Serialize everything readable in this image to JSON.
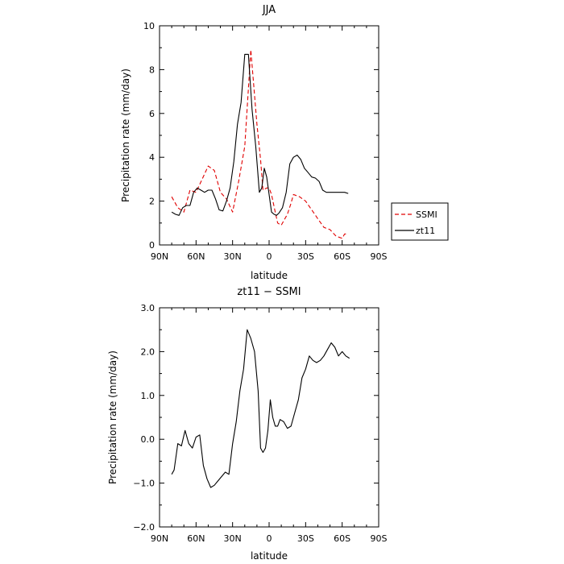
{
  "chart_data": [
    {
      "type": "line",
      "title": "JJA",
      "xlabel": "latitude",
      "ylabel": "Precipitation rate (mm/day)",
      "xlim": [
        90,
        -90
      ],
      "ylim": [
        0,
        10
      ],
      "x_ticks": [
        90,
        60,
        30,
        0,
        -30,
        -60,
        -90
      ],
      "x_tick_labels": [
        "90N",
        "60N",
        "30N",
        "0",
        "30S",
        "60S",
        "90S"
      ],
      "y_ticks": [
        0,
        2,
        4,
        6,
        8,
        10
      ],
      "y_tick_labels": [
        "0",
        "2",
        "4",
        "6",
        "8",
        "10"
      ],
      "grid": false,
      "legend_position": "right",
      "series": [
        {
          "name": "SSMI",
          "color": "#e00000",
          "dash": "dashed",
          "x": [
            80,
            75,
            70,
            65,
            60,
            55,
            50,
            45,
            40,
            35,
            30,
            25,
            20,
            15,
            10,
            7,
            5,
            2,
            0,
            -2,
            -5,
            -7,
            -10,
            -15,
            -18,
            -20,
            -25,
            -30,
            -35,
            -40,
            -45,
            -50,
            -55,
            -60,
            -62,
            -65
          ],
          "y": [
            2.2,
            1.7,
            1.5,
            2.5,
            2.4,
            3.0,
            3.6,
            3.4,
            2.4,
            2.1,
            1.5,
            2.9,
            4.5,
            8.9,
            5.5,
            3.9,
            2.5,
            2.6,
            2.6,
            2.3,
            1.5,
            1.0,
            0.9,
            1.4,
            1.9,
            2.3,
            2.2,
            2.0,
            1.6,
            1.2,
            0.8,
            0.7,
            0.4,
            0.3,
            0.5,
            0.5
          ]
        },
        {
          "name": "zt11",
          "color": "#000000",
          "dash": "solid",
          "x": [
            80,
            77,
            74,
            71,
            68,
            65,
            62,
            59,
            56,
            53,
            50,
            47,
            44,
            41,
            38,
            35,
            32,
            29,
            26,
            23,
            20,
            17,
            14,
            11,
            8,
            6,
            4,
            2,
            0,
            -2,
            -4,
            -6,
            -8,
            -11,
            -14,
            -17,
            -20,
            -23,
            -26,
            -29,
            -32,
            -35,
            -38,
            -41,
            -44,
            -47,
            -50,
            -53,
            -56,
            -59,
            -62,
            -65
          ],
          "y": [
            1.5,
            1.4,
            1.35,
            1.7,
            1.8,
            1.8,
            2.4,
            2.6,
            2.5,
            2.4,
            2.5,
            2.5,
            2.1,
            1.6,
            1.55,
            2.0,
            2.6,
            3.8,
            5.5,
            6.5,
            8.7,
            8.7,
            6.2,
            4.5,
            2.4,
            2.6,
            3.5,
            3.1,
            2.3,
            1.5,
            1.4,
            1.35,
            1.45,
            1.7,
            2.4,
            3.7,
            4.0,
            4.1,
            3.9,
            3.5,
            3.3,
            3.1,
            3.05,
            2.9,
            2.5,
            2.4,
            2.4,
            2.4,
            2.4,
            2.4,
            2.4,
            2.35
          ]
        }
      ]
    },
    {
      "type": "line",
      "title": "zt11 − SSMI",
      "xlabel": "latitude",
      "ylabel": "Precipitation rate (mm/day)",
      "xlim": [
        90,
        -90
      ],
      "ylim": [
        -2,
        3
      ],
      "x_ticks": [
        90,
        60,
        30,
        0,
        -30,
        -60,
        -90
      ],
      "x_tick_labels": [
        "90N",
        "60N",
        "30N",
        "0",
        "30S",
        "60S",
        "90S"
      ],
      "y_ticks": [
        -2,
        -1,
        0,
        1,
        2,
        3
      ],
      "y_tick_labels": [
        "−2.0",
        "−1.0",
        "0.0",
        "1.0",
        "2.0",
        "3.0"
      ],
      "grid": false,
      "series": [
        {
          "color": "#000000",
          "dash": "solid",
          "x": [
            80,
            78,
            75,
            72,
            69,
            66,
            63,
            60,
            57,
            54,
            51,
            48,
            45,
            42,
            39,
            36,
            33,
            30,
            27,
            24,
            21,
            18,
            15,
            12,
            9,
            7,
            5,
            3,
            1,
            -1,
            -3,
            -5,
            -7,
            -9,
            -12,
            -15,
            -18,
            -21,
            -24,
            -27,
            -30,
            -33,
            -36,
            -39,
            -42,
            -45,
            -48,
            -51,
            -54,
            -57,
            -60,
            -63,
            -66
          ],
          "y": [
            -0.8,
            -0.7,
            -0.1,
            -0.15,
            0.2,
            -0.1,
            -0.2,
            0.05,
            0.1,
            -0.6,
            -0.9,
            -1.1,
            -1.05,
            -0.95,
            -0.85,
            -0.75,
            -0.8,
            -0.1,
            0.4,
            1.1,
            1.6,
            2.5,
            2.3,
            2.0,
            1.1,
            -0.2,
            -0.3,
            -0.2,
            0.2,
            0.9,
            0.5,
            0.3,
            0.3,
            0.45,
            0.4,
            0.25,
            0.3,
            0.6,
            0.9,
            1.4,
            1.6,
            1.9,
            1.8,
            1.75,
            1.8,
            1.9,
            2.05,
            2.2,
            2.1,
            1.9,
            2.0,
            1.9,
            1.85
          ]
        }
      ]
    }
  ]
}
